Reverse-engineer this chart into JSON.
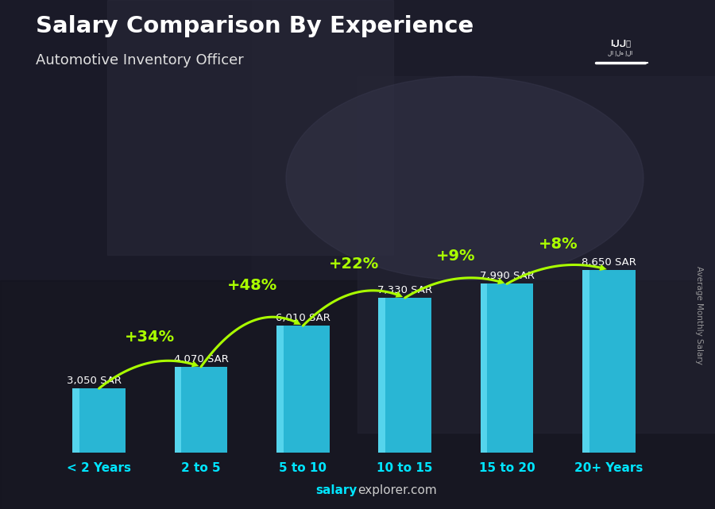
{
  "title": "Salary Comparison By Experience",
  "subtitle": "Automotive Inventory Officer",
  "categories": [
    "< 2 Years",
    "2 to 5",
    "5 to 10",
    "10 to 15",
    "15 to 20",
    "20+ Years"
  ],
  "values": [
    3050,
    4070,
    6010,
    7330,
    7990,
    8650
  ],
  "bar_color": "#29b6d4",
  "bar_color_left": "#55d4ec",
  "bg_color": "#1a1a2e",
  "title_color": "#ffffff",
  "subtitle_color": "#e0e0e0",
  "salary_label_color": "#ffffff",
  "pct_label_color": "#aaff00",
  "xlabel_color": "#00e5ff",
  "watermark_color": "#aaaaaa",
  "footer_bold": "salary",
  "footer_regular": "explorer.com",
  "pct_changes": [
    "+34%",
    "+48%",
    "+22%",
    "+9%",
    "+8%"
  ],
  "salary_labels": [
    "3,050 SAR",
    "4,070 SAR",
    "6,010 SAR",
    "7,330 SAR",
    "7,990 SAR",
    "8,650 SAR"
  ],
  "ylabel_text": "Average Monthly Salary",
  "footer_text": "salaryexplorer.com",
  "ylim_max": 12500,
  "bar_width": 0.52
}
